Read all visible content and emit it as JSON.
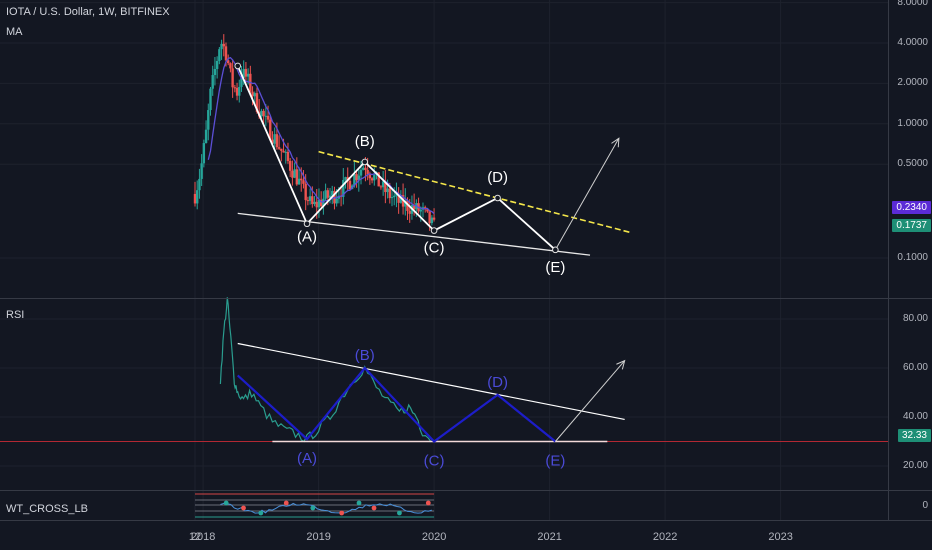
{
  "header": {
    "symbol_line": "IOTA / U.S. Dollar, 1W, BITFINEX",
    "ma_label": "MA",
    "rsi_label": "RSI",
    "wt_label": "WT_CROSS_LB"
  },
  "colors": {
    "background": "#131722",
    "up": "#26a69a",
    "down": "#ef5350",
    "ma": "#5c4fd6",
    "wave_white": "#ffffff",
    "resistance": "#f5e74a",
    "rsi_line": "#2a9d8f",
    "rsi_wave": "#1d1dc9",
    "price_tag_purple": "#5b2bd6",
    "price_tag_green": "#1e8f76"
  },
  "chart_data": [
    {
      "type": "candlestick",
      "pane": "price",
      "log_scale": true,
      "y_ticks": [
        "8.0000",
        "4.0000",
        "2.0000",
        "1.0000",
        "0.5000",
        "0.1000"
      ],
      "x_ticks": [
        "12",
        "2018",
        "2019",
        "2020",
        "2021",
        "2022",
        "2023"
      ],
      "price_tags": [
        {
          "value": "0.2340",
          "color": "purple"
        },
        {
          "value": "0.1737",
          "color": "green"
        }
      ],
      "wave_labels": [
        "(A)",
        "(B)",
        "(C)",
        "(D)",
        "(E)"
      ],
      "wave_points": [
        {
          "x": 2018.3,
          "y": 2.7
        },
        {
          "x": 2018.9,
          "y": 0.18
        },
        {
          "x": 2019.4,
          "y": 0.52
        },
        {
          "x": 2020.0,
          "y": 0.16
        },
        {
          "x": 2020.55,
          "y": 0.28
        },
        {
          "x": 2021.05,
          "y": 0.115
        },
        {
          "x": 2021.6,
          "y": 0.78
        }
      ],
      "resistance_line": [
        {
          "x": 2019.0,
          "y": 0.62
        },
        {
          "x": 2021.7,
          "y": 0.155
        }
      ],
      "support_line": [
        {
          "x": 2018.3,
          "y": 0.215
        },
        {
          "x": 2021.35,
          "y": 0.105
        }
      ]
    },
    {
      "type": "line",
      "pane": "rsi",
      "y_ticks": [
        "80.00",
        "60.00",
        "40.00",
        "20.00"
      ],
      "current_value": "32.33",
      "wave_labels": [
        "(A)",
        "(B)",
        "(C)",
        "(D)",
        "(E)"
      ],
      "wave_points": [
        {
          "x": 2018.3,
          "y": 57
        },
        {
          "x": 2018.9,
          "y": 31
        },
        {
          "x": 2019.4,
          "y": 60
        },
        {
          "x": 2020.0,
          "y": 30
        },
        {
          "x": 2020.55,
          "y": 49
        },
        {
          "x": 2021.05,
          "y": 30
        },
        {
          "x": 2021.65,
          "y": 63
        }
      ],
      "trend_line": [
        {
          "x": 2018.3,
          "y": 70
        },
        {
          "x": 2021.65,
          "y": 39
        }
      ],
      "floor_line": [
        {
          "x": 2018.6,
          "y": 30
        },
        {
          "x": 2021.5,
          "y": 30
        }
      ]
    },
    {
      "type": "line",
      "pane": "wt_cross",
      "y_ticks": [
        "0"
      ]
    }
  ]
}
